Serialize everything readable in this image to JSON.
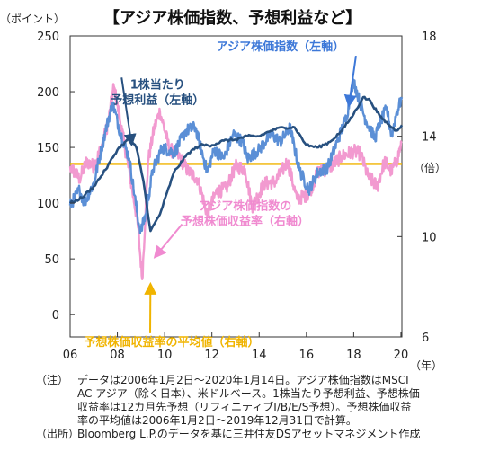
{
  "title": "【アジア株価指数、予想利益など】",
  "left_unit": "（ポイント）",
  "right_unit": "（倍）",
  "x_unit": "（年）",
  "notes": [
    {
      "label": "（注）",
      "text": "データは2006年1月2日～2020年1月14日。アジア株価指数はMSCI\nAC アジア（除く日本）、米ドルベース。1株当たり予想利益、予想株価\n収益率は12カ月先予想（リフィニティブI/B/E/S予想）。予想株価収益\n率の平均値は2006年1月2日～2019年12月31日で計算。"
    },
    {
      "label": "（出所）",
      "text": "Bloomberg L.P.のデータを基に三井住友DSアセットマネジメント作成"
    }
  ],
  "chart_data": {
    "type": "line",
    "x_tick_labels": [
      "06",
      "08",
      "10",
      "12",
      "14",
      "16",
      "18",
      "20"
    ],
    "x_ticks": [
      2006,
      2008,
      2010,
      2012,
      2014,
      2016,
      2018,
      2020
    ],
    "xlim": [
      2006,
      2020.04
    ],
    "y_left": {
      "lim": [
        -20,
        250
      ],
      "ticks": [
        0,
        50,
        100,
        150,
        200,
        250
      ]
    },
    "y_right": {
      "lim": [
        6,
        18
      ],
      "ticks": [
        6,
        10,
        14,
        18
      ]
    },
    "grid": false,
    "series": [
      {
        "name": "アジア株価指数（左軸）",
        "axis": "left",
        "color": "#5b8fd6",
        "x": [
          2006.0,
          2006.4,
          2006.6,
          2007.0,
          2007.5,
          2007.8,
          2008.1,
          2008.5,
          2008.9,
          2009.0,
          2009.2,
          2009.5,
          2009.9,
          2010.4,
          2010.9,
          2011.3,
          2011.8,
          2012.1,
          2012.5,
          2012.9,
          2013.3,
          2013.5,
          2014.0,
          2014.5,
          2014.9,
          2015.3,
          2015.7,
          2016.1,
          2016.5,
          2016.9,
          2017.3,
          2017.7,
          2018.0,
          2018.2,
          2018.5,
          2018.9,
          2019.1,
          2019.4,
          2019.6,
          2019.8,
          2020.04
        ],
        "y": [
          98,
          112,
          100,
          118,
          165,
          190,
          165,
          140,
          82,
          75,
          90,
          130,
          150,
          145,
          165,
          168,
          128,
          148,
          140,
          162,
          155,
          140,
          148,
          162,
          155,
          168,
          130,
          112,
          128,
          132,
          155,
          178,
          210,
          195,
          175,
          158,
          172,
          185,
          160,
          180,
          195
        ]
      },
      {
        "name": "1株当たり予想利益（左軸）",
        "axis": "left",
        "color": "#27507f",
        "x": [
          2006.0,
          2006.5,
          2007.0,
          2007.5,
          2008.0,
          2008.5,
          2008.8,
          2009.1,
          2009.4,
          2009.8,
          2010.4,
          2011.0,
          2011.5,
          2012.0,
          2012.5,
          2013.0,
          2013.5,
          2014.0,
          2014.5,
          2015.0,
          2015.5,
          2016.0,
          2016.5,
          2017.0,
          2017.5,
          2018.0,
          2018.4,
          2018.7,
          2019.1,
          2019.5,
          2019.8,
          2020.04
        ],
        "y": [
          100,
          105,
          115,
          130,
          148,
          158,
          150,
          120,
          75,
          90,
          128,
          145,
          152,
          152,
          156,
          157,
          160,
          160,
          165,
          168,
          168,
          152,
          150,
          155,
          165,
          180,
          195,
          192,
          178,
          170,
          165,
          170
        ]
      },
      {
        "name": "予想株価収益率（右軸）",
        "axis": "right",
        "color": "#f29ad0",
        "x": [
          2006.0,
          2006.4,
          2006.7,
          2007.0,
          2007.3,
          2007.6,
          2007.85,
          2008.2,
          2008.6,
          2008.85,
          2009.05,
          2009.3,
          2009.55,
          2009.8,
          2010.2,
          2010.6,
          2011.0,
          2011.4,
          2011.8,
          2012.2,
          2012.6,
          2013.0,
          2013.4,
          2013.7,
          2014.2,
          2014.7,
          2015.2,
          2015.6,
          2016.1,
          2016.5,
          2016.9,
          2017.5,
          2018.0,
          2018.3,
          2018.6,
          2019.0,
          2019.3,
          2019.6,
          2019.85,
          2020.04
        ],
        "y": [
          12.8,
          12.3,
          13.0,
          12.8,
          13.5,
          14.5,
          16.0,
          14.2,
          12.0,
          10.6,
          8.3,
          13.0,
          14.3,
          15.0,
          13.5,
          13.2,
          12.6,
          12.3,
          10.9,
          11.8,
          11.9,
          12.8,
          12.7,
          11.2,
          12.1,
          12.2,
          13.0,
          11.5,
          11.7,
          12.6,
          12.7,
          13.2,
          13.4,
          13.3,
          12.4,
          12.0,
          13.0,
          12.6,
          13.1,
          13.8
        ]
      },
      {
        "name": "予想株価収益率の平均値（右軸）",
        "axis": "right",
        "color": "#f0b400",
        "x": [
          2006.0,
          2020.04
        ],
        "y": [
          12.9,
          12.9
        ]
      }
    ],
    "annotations": [
      {
        "text": "アジア株価指数（左軸）",
        "color": "#3d78d8",
        "lines": [
          "アジア株価指数（左軸）"
        ],
        "x": 2014.9,
        "y": 237,
        "arrow_to": [
          2017.8,
          188
        ]
      },
      {
        "text": "1株当たり予想利益（左軸）",
        "color": "#27507f",
        "lines": [
          "1株当たり",
          "予想利益（左軸）"
        ],
        "x": 2009.7,
        "y": 203,
        "arrow_to": [
          2008.6,
          153
        ]
      },
      {
        "text": "アジア株価指数の予想株価収益率（右軸）",
        "color": "#f08ad0",
        "lines": [
          "アジア株価指数の",
          "予想株価収益率（右軸）"
        ],
        "x": 2013.4,
        "y": 94,
        "arrow_to": [
          2009.6,
          52
        ]
      },
      {
        "text": "予想株価収益率の平均値（右軸）",
        "color": "#f0b400",
        "lines": [
          "予想株価収益率の平均値（右軸）"
        ],
        "x": 2010.3,
        "y": -28,
        "arrow_to": [
          2009.4,
          27
        ]
      }
    ]
  }
}
